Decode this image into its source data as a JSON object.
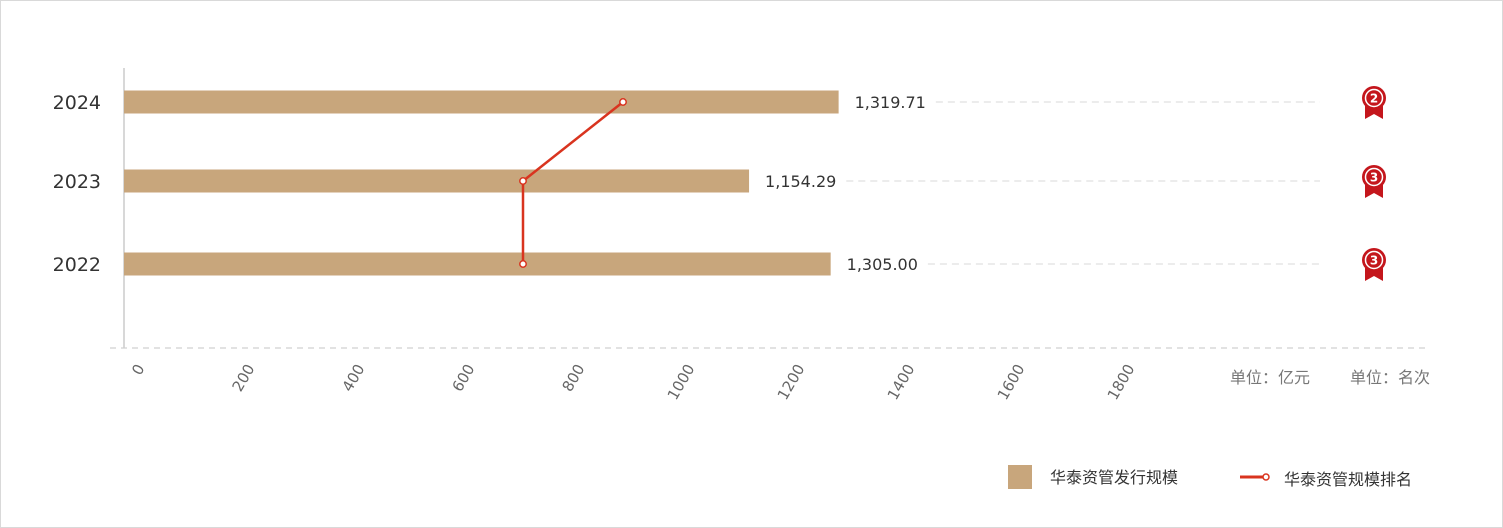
{
  "chart_data": {
    "type": "bar",
    "orientation": "horizontal",
    "categories": [
      "2022",
      "2023",
      "2024"
    ],
    "series": [
      {
        "name": "华泰资管发行规模",
        "type": "bar",
        "values": [
          1305.0,
          1154.29,
          1319.71
        ],
        "labels": [
          "1,305.00",
          "1,154.29",
          "1,319.71"
        ],
        "color": "#c8a67c"
      },
      {
        "name": "华泰资管规模排名",
        "type": "line",
        "values": [
          3,
          3,
          2
        ],
        "color": "#d9341f"
      }
    ],
    "x_ticks": [
      "0",
      "200",
      "400",
      "600",
      "800",
      "1000",
      "1200",
      "1400",
      "1600",
      "1800"
    ],
    "unit_primary": "单位：亿元",
    "unit_secondary": "单位：名次",
    "legend_placement": "bottom-right",
    "grid": true
  }
}
